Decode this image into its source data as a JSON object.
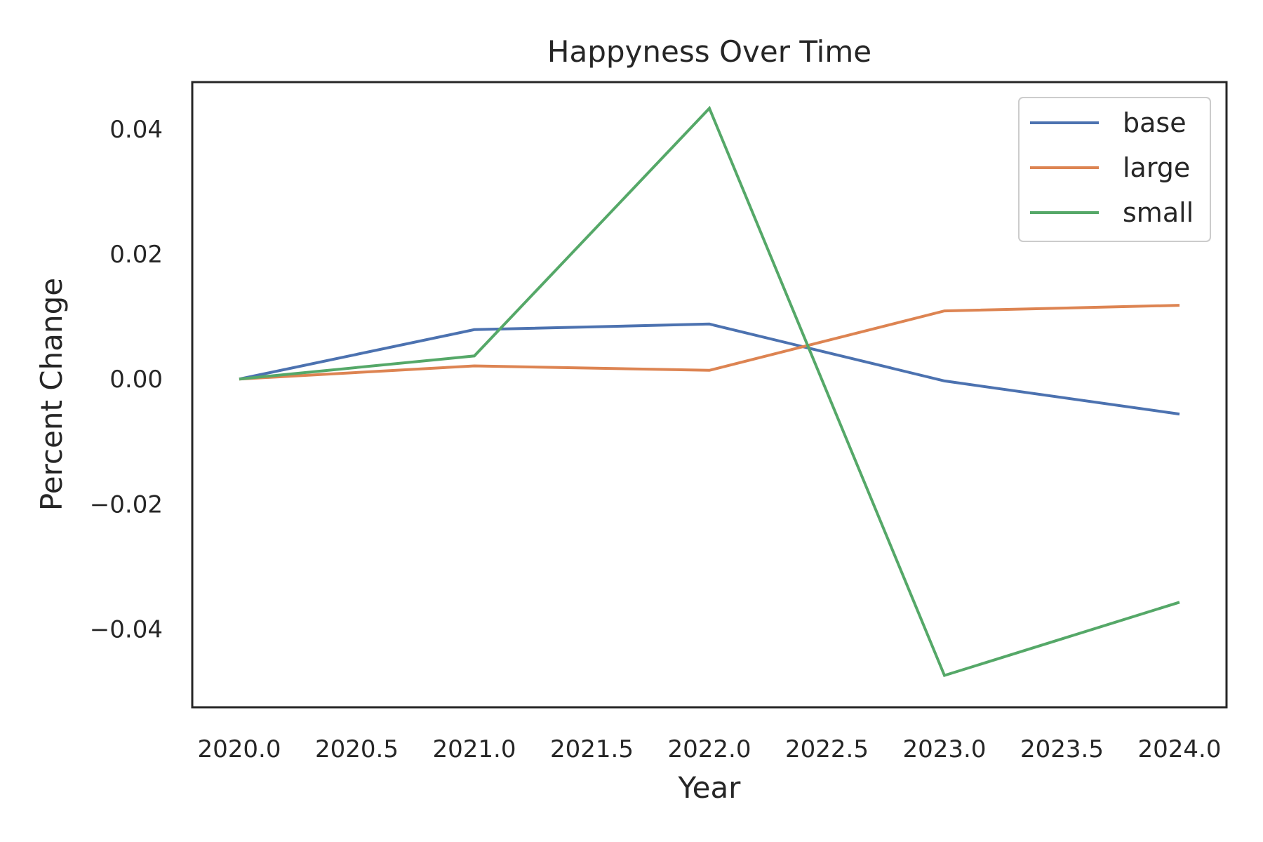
{
  "chart_data": {
    "type": "line",
    "title": "Happyness Over Time",
    "xlabel": "Year",
    "ylabel": "Percent Change",
    "x": [
      2020,
      2021,
      2022,
      2023,
      2024
    ],
    "xlim": [
      2019.8,
      2024.2
    ],
    "ylim": [
      -0.0525,
      0.0475
    ],
    "xticks": [
      2020.0,
      2020.5,
      2021.0,
      2021.5,
      2022.0,
      2022.5,
      2023.0,
      2023.5,
      2024.0
    ],
    "xtick_labels": [
      "2020.0",
      "2020.5",
      "2021.0",
      "2021.5",
      "2022.0",
      "2022.5",
      "2023.0",
      "2023.5",
      "2024.0"
    ],
    "yticks": [
      0.04,
      0.02,
      0.0,
      -0.02,
      -0.04
    ],
    "ytick_labels": [
      "0.04",
      "0.02",
      "0.00",
      "−0.02",
      "−0.04"
    ],
    "grid": false,
    "legend_position": "top-right",
    "series": [
      {
        "name": "base",
        "color": "#4c72b0",
        "values": [
          0.0,
          0.0079,
          0.0088,
          -0.0003,
          -0.0056
        ]
      },
      {
        "name": "large",
        "color": "#dd8452",
        "values": [
          0.0,
          0.0021,
          0.0014,
          0.0109,
          0.0118
        ]
      },
      {
        "name": "small",
        "color": "#55a868",
        "values": [
          0.0,
          0.0037,
          0.0433,
          -0.0474,
          -0.0357
        ]
      }
    ]
  }
}
